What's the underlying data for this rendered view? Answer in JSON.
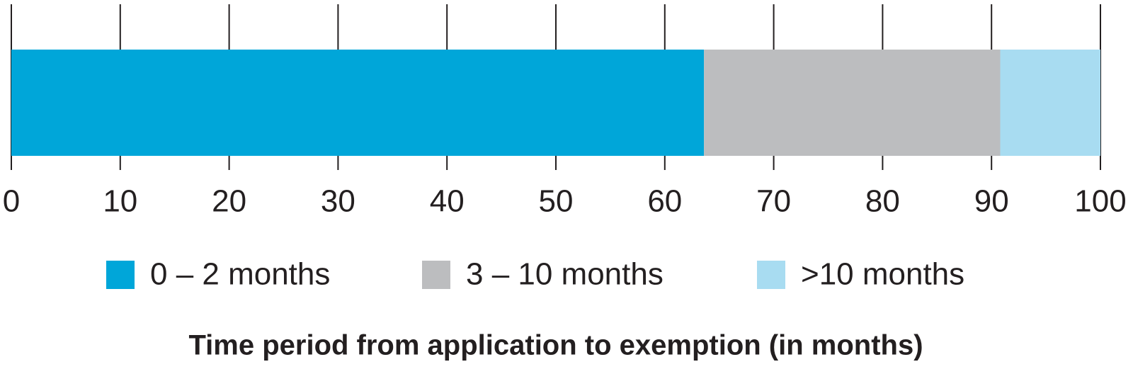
{
  "chart_data": {
    "type": "stacked_hbar",
    "x_label": "Time period from application to exemption (in months)",
    "categories": [
      null
    ],
    "series": [
      {
        "name": "0 – 2 months",
        "color": "#00a6d9",
        "values": [
          63.6
        ]
      },
      {
        "name": "3 – 10 months",
        "color": "#bcbdbf",
        "values": [
          27.2
        ]
      },
      {
        "name": ">10 months",
        "color": "#a8dcf1",
        "values": [
          9.2
        ]
      }
    ],
    "xlim": [
      0,
      100
    ],
    "xticks": [
      0,
      10,
      20,
      30,
      40,
      50,
      60,
      70,
      80,
      90,
      100
    ],
    "grid": true
  }
}
